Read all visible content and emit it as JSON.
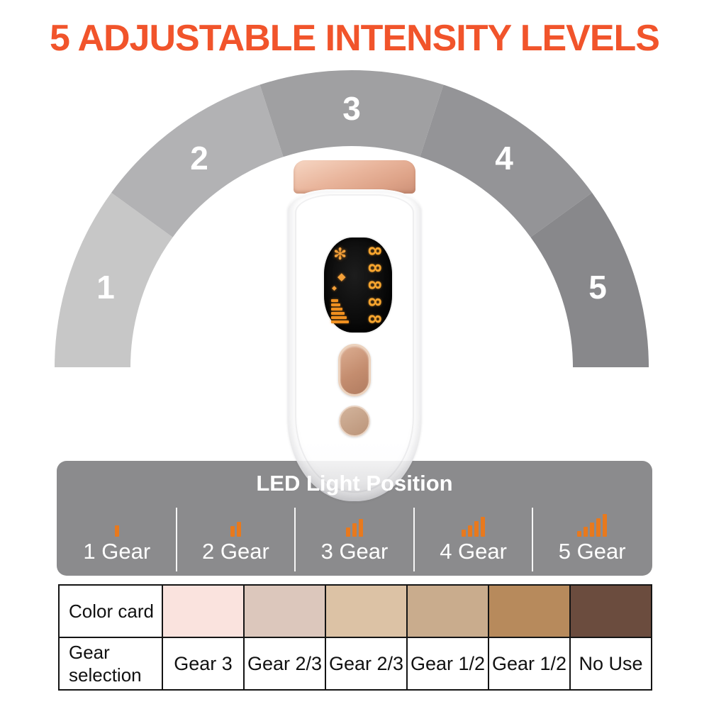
{
  "title": {
    "text": "5 ADJUSTABLE INTENSITY LEVELS",
    "color": "#f1542b"
  },
  "gauge": {
    "type": "arc-scale",
    "label_color": "#ffffff",
    "levels": [
      {
        "label": "1",
        "color": "#c7c7c7"
      },
      {
        "label": "2",
        "color": "#b2b2b4"
      },
      {
        "label": "3",
        "color": "#a0a0a2"
      },
      {
        "label": "4",
        "color": "#949497"
      },
      {
        "label": "5",
        "color": "#88888b"
      }
    ]
  },
  "device": {
    "description": "white IPL hair-removal handset with rose-gold cap and buttons",
    "display": {
      "digits": "88888",
      "lcd_color": "#f6a42e",
      "icons": [
        "fan-icon",
        "diamond-icon",
        "diamond-icon-small",
        "intensity-wedge-icon"
      ]
    }
  },
  "led_panel": {
    "title": "LED Light Position",
    "background": "#8b8b8d",
    "bar_color": "#e8791d",
    "gears": [
      {
        "label": "1 Gear",
        "bars": 1
      },
      {
        "label": "2 Gear",
        "bars": 2
      },
      {
        "label": "3 Gear",
        "bars": 3
      },
      {
        "label": "4 Gear",
        "bars": 4
      },
      {
        "label": "5 Gear",
        "bars": 5
      }
    ]
  },
  "table": {
    "row_headers": [
      "Color card",
      "Gear selection"
    ],
    "columns": [
      {
        "color": "#fae3de",
        "gear": "Gear 3"
      },
      {
        "color": "#dcc7bc",
        "gear": "Gear 2/3"
      },
      {
        "color": "#dcc2a5",
        "gear": "Gear 2/3"
      },
      {
        "color": "#c9ac8d",
        "gear": "Gear 1/2"
      },
      {
        "color": "#b78a5c",
        "gear": "Gear 1/2"
      },
      {
        "color": "#6b4c3e",
        "gear": "No Use"
      }
    ]
  }
}
